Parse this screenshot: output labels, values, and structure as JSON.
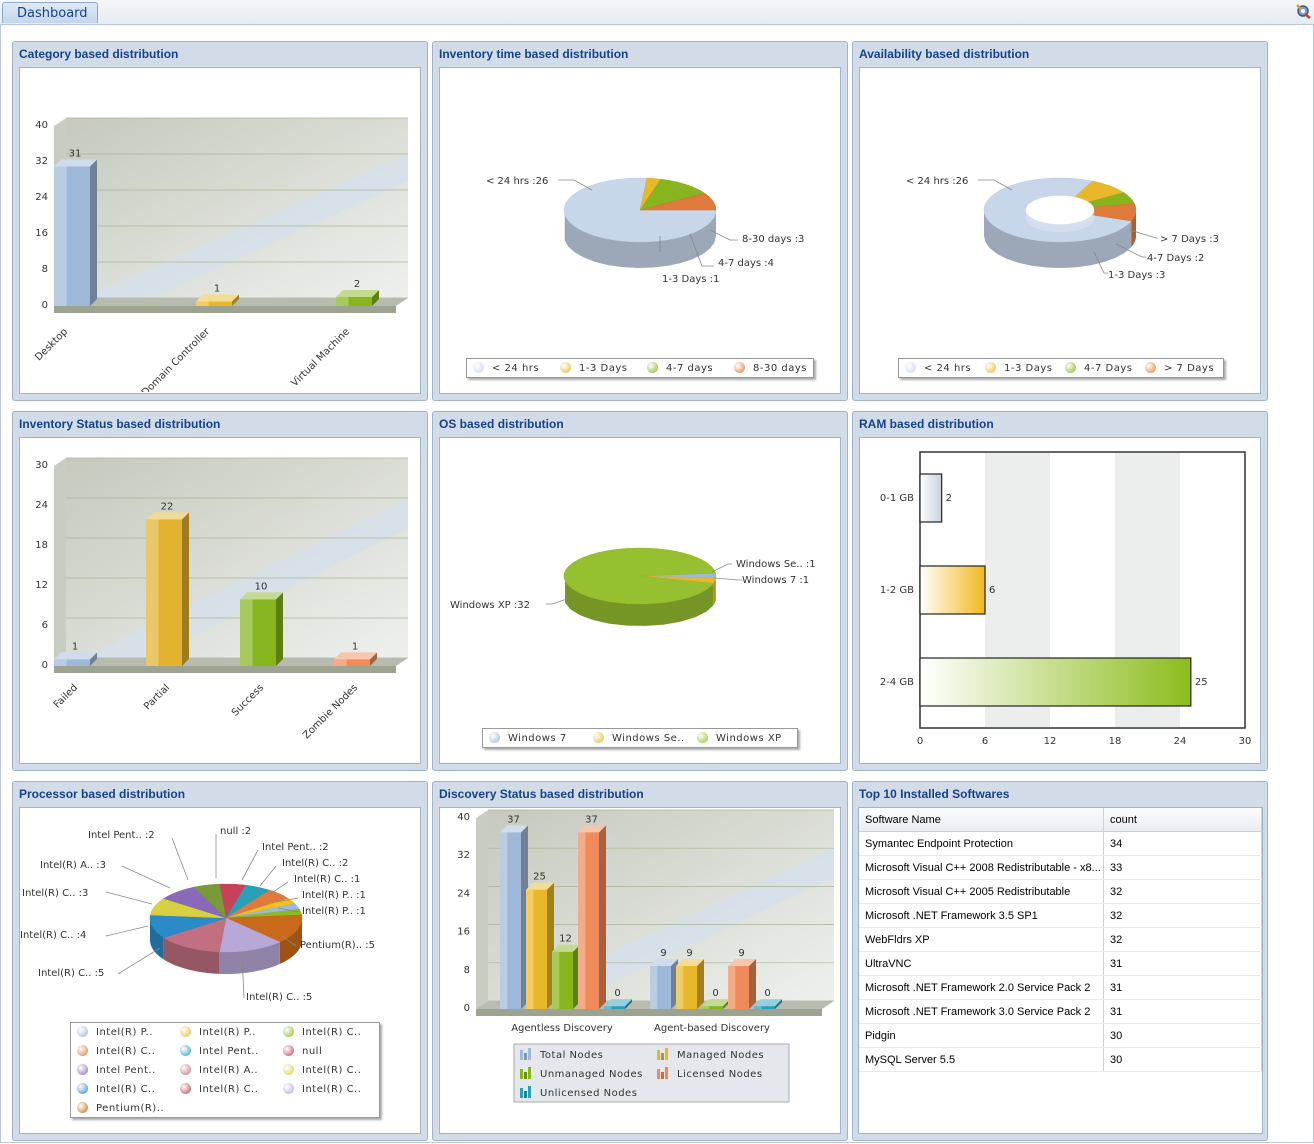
{
  "tabs": {
    "dashboard": "Dashboard"
  },
  "panels": {
    "category": "Category based distribution",
    "inventory_time": "Inventory time based distribution",
    "availability": "Availability based distribution",
    "inventory_status": "Inventory Status based distribution",
    "os": "OS based distribution",
    "ram": "RAM based distribution",
    "processor": "Processor based distribution",
    "discovery": "Discovery Status based distribution",
    "top_software": "Top 10 Installed Softwares"
  },
  "chart_data": [
    {
      "id": "category",
      "type": "bar",
      "categories": [
        "Desktop",
        "Domain Controller",
        "Virtual Machine"
      ],
      "values": [
        31,
        1,
        2
      ],
      "ylim": [
        0,
        40
      ],
      "yticks": [
        0,
        8,
        16,
        24,
        32,
        40
      ],
      "colors": [
        "#9db8d8",
        "#e8b82a",
        "#86b51e"
      ]
    },
    {
      "id": "inventory_time",
      "type": "pie",
      "labels": [
        "< 24 hrs",
        "1-3 Days",
        "4-7 days",
        "8-30 days"
      ],
      "values": [
        26,
        1,
        4,
        3
      ],
      "slice_labels": [
        "< 24 hrs :26",
        "1-3 Days :1",
        "4-7 days :4",
        "8-30 days :3"
      ],
      "colors": [
        "#c8d6ea",
        "#e8b82a",
        "#86b51e",
        "#e07a3a"
      ]
    },
    {
      "id": "availability",
      "type": "pie",
      "labels": [
        "< 24 hrs",
        "1-3 Days",
        "4-7 Days",
        "> 7 Days"
      ],
      "values": [
        26,
        3,
        2,
        3
      ],
      "slice_labels": [
        "< 24 hrs :26",
        "1-3 Days :3",
        "4-7 Days :2",
        "> 7 Days :3"
      ],
      "colors": [
        "#c8d6ea",
        "#e8b82a",
        "#86b51e",
        "#e07a3a"
      ]
    },
    {
      "id": "inventory_status",
      "type": "bar",
      "categories": [
        "Failed",
        "Partial",
        "Success",
        "Zombie Nodes"
      ],
      "values": [
        1,
        22,
        10,
        1
      ],
      "ylim": [
        0,
        30
      ],
      "yticks": [
        0,
        6,
        12,
        18,
        24,
        30
      ],
      "colors": [
        "#9db8d8",
        "#e2b230",
        "#86b51e",
        "#f08a5a"
      ]
    },
    {
      "id": "os",
      "type": "pie",
      "labels": [
        "Windows 7",
        "Windows Se..",
        "Windows XP"
      ],
      "values": [
        1,
        1,
        32
      ],
      "slice_labels": [
        "Windows 7 :1",
        "Windows Se.. :1",
        "Windows XP :32"
      ],
      "colors": [
        "#9db8d8",
        "#e8b82a",
        "#96c030"
      ]
    },
    {
      "id": "ram",
      "type": "bar",
      "categories": [
        "0-1 GB",
        "1-2 GB",
        "2-4 GB"
      ],
      "values": [
        2,
        6,
        25
      ],
      "xlim": [
        0,
        30
      ],
      "xticks": [
        0,
        6,
        12,
        18,
        24,
        30
      ],
      "colors": [
        "#c8d2de",
        "#f2b81c",
        "#8cbc1c"
      ]
    },
    {
      "id": "processor",
      "type": "pie",
      "labels": [
        "Intel(R) P..",
        "Intel(R) P..",
        "Intel(R) C..",
        "Intel(R) C..",
        "Intel Pent..",
        "null",
        "Intel Pent..",
        "Intel(R) A..",
        "Intel(R) C..",
        "Intel(R) C..",
        "Intel(R) C..",
        "Intel(R) C..",
        "Pentium(R).."
      ],
      "slice_labels": [
        "null :2",
        "Intel Pent.. :2",
        "Intel(R) C.. :2",
        "Intel(R) C.. :1",
        "Intel(R) P.. :1",
        "Intel(R) P.. :1",
        "Pentium(R).. :5",
        "Intel(R) C.. :5",
        "Intel(R) C.. :5",
        "Intel(R) C.. :4",
        "Intel(R) C.. :3",
        "Intel(R) A.. :3",
        "Intel Pent.. :2"
      ],
      "values": [
        2,
        2,
        2,
        1,
        1,
        1,
        5,
        5,
        5,
        4,
        3,
        3,
        2
      ],
      "colors": [
        "#c9405a",
        "#2aa0b8",
        "#e07a3a",
        "#f0c020",
        "#9db8d8",
        "#8cbc1c",
        "#c86a1a",
        "#b8a8d8",
        "#c07080",
        "#2b8ac8",
        "#d8d040",
        "#8a6ab8",
        "#7a9a3a"
      ],
      "legend_colors": [
        "#9db8d8",
        "#e8b82a",
        "#8cbc1c",
        "#e07a3a",
        "#2aa0b8",
        "#c9405a",
        "#8a6ab8",
        "#c07080",
        "#d8d040",
        "#2b8ac8",
        "#c0404a",
        "#b8a8d8",
        "#c86a1a"
      ]
    },
    {
      "id": "discovery",
      "type": "bar",
      "categories": [
        "Agentless Discovery",
        "Agent-based Discovery"
      ],
      "series": [
        {
          "name": "Total Nodes",
          "values": [
            37,
            9
          ],
          "color": "#9db8d8"
        },
        {
          "name": "Managed Nodes",
          "values": [
            25,
            9
          ],
          "color": "#e8b82a"
        },
        {
          "name": "Unmanaged Nodes",
          "values": [
            12,
            0
          ],
          "color": "#86b51e"
        },
        {
          "name": "Licensed Nodes",
          "values": [
            37,
            9
          ],
          "color": "#f08a5a"
        },
        {
          "name": "Unlicensed Nodes",
          "values": [
            0,
            0
          ],
          "color": "#2aa0b8"
        }
      ],
      "ylim": [
        0,
        40
      ],
      "yticks": [
        0,
        8,
        16,
        24,
        32,
        40
      ]
    }
  ],
  "software_table": {
    "headers": [
      "Software Name",
      "count"
    ],
    "rows": [
      [
        "Symantec Endpoint Protection",
        "34"
      ],
      [
        "Microsoft Visual C++ 2008 Redistributable - x8...",
        "33"
      ],
      [
        "Microsoft Visual C++ 2005 Redistributable",
        "32"
      ],
      [
        "Microsoft .NET Framework 3.5 SP1",
        "32"
      ],
      [
        "WebFldrs XP",
        "32"
      ],
      [
        "UltraVNC",
        "31"
      ],
      [
        "Microsoft .NET Framework 2.0 Service Pack 2",
        "31"
      ],
      [
        "Microsoft .NET Framework 3.0 Service Pack 2",
        "31"
      ],
      [
        "Pidgin",
        "30"
      ],
      [
        "MySQL Server 5.5",
        "30"
      ]
    ]
  }
}
